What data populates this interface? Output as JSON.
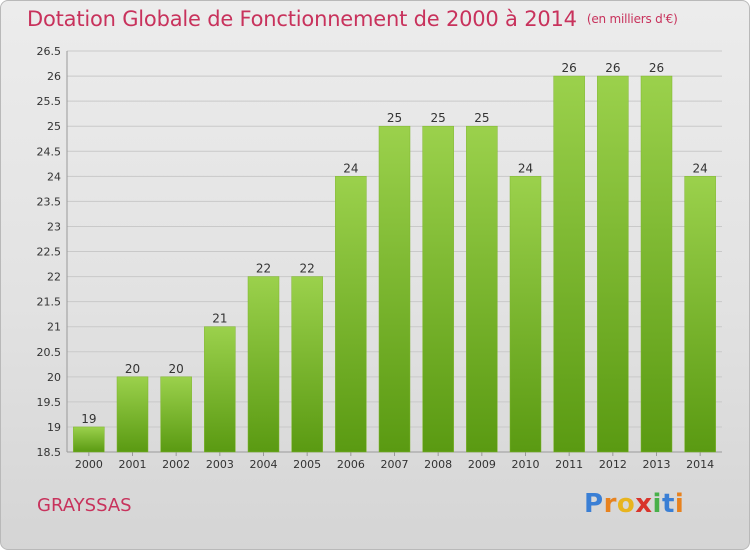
{
  "page": {
    "title": "Dotation Globale de Fonctionnement de 2000 à 2014",
    "unit": "(en milliers d'€)",
    "place": "GRAYSSAS",
    "logo_text": "Proxiti"
  },
  "colors": {
    "title": "#c8325c",
    "bar_top": "#9bd14c",
    "bar_bottom": "#5a9a12",
    "grid": "#c9c9c9",
    "axis_text": "#333333"
  },
  "chart_data": {
    "type": "bar",
    "title": "Dotation Globale de Fonctionnement de 2000 à 2014",
    "subtitle": "(en milliers d'€)",
    "xlabel": "",
    "ylabel": "",
    "categories": [
      "2000",
      "2001",
      "2002",
      "2003",
      "2004",
      "2005",
      "2006",
      "2007",
      "2008",
      "2009",
      "2010",
      "2011",
      "2012",
      "2013",
      "2014"
    ],
    "values": [
      19,
      20,
      20,
      21,
      22,
      22,
      24,
      25,
      25,
      25,
      24,
      26,
      26,
      26,
      24
    ],
    "ylim": [
      18.5,
      26.5
    ],
    "yticks": [
      18.5,
      19,
      19.5,
      20,
      20.5,
      21,
      21.5,
      22,
      22.5,
      23,
      23.5,
      24,
      24.5,
      25,
      25.5,
      26,
      26.5
    ],
    "grid": true,
    "legend": "none"
  }
}
